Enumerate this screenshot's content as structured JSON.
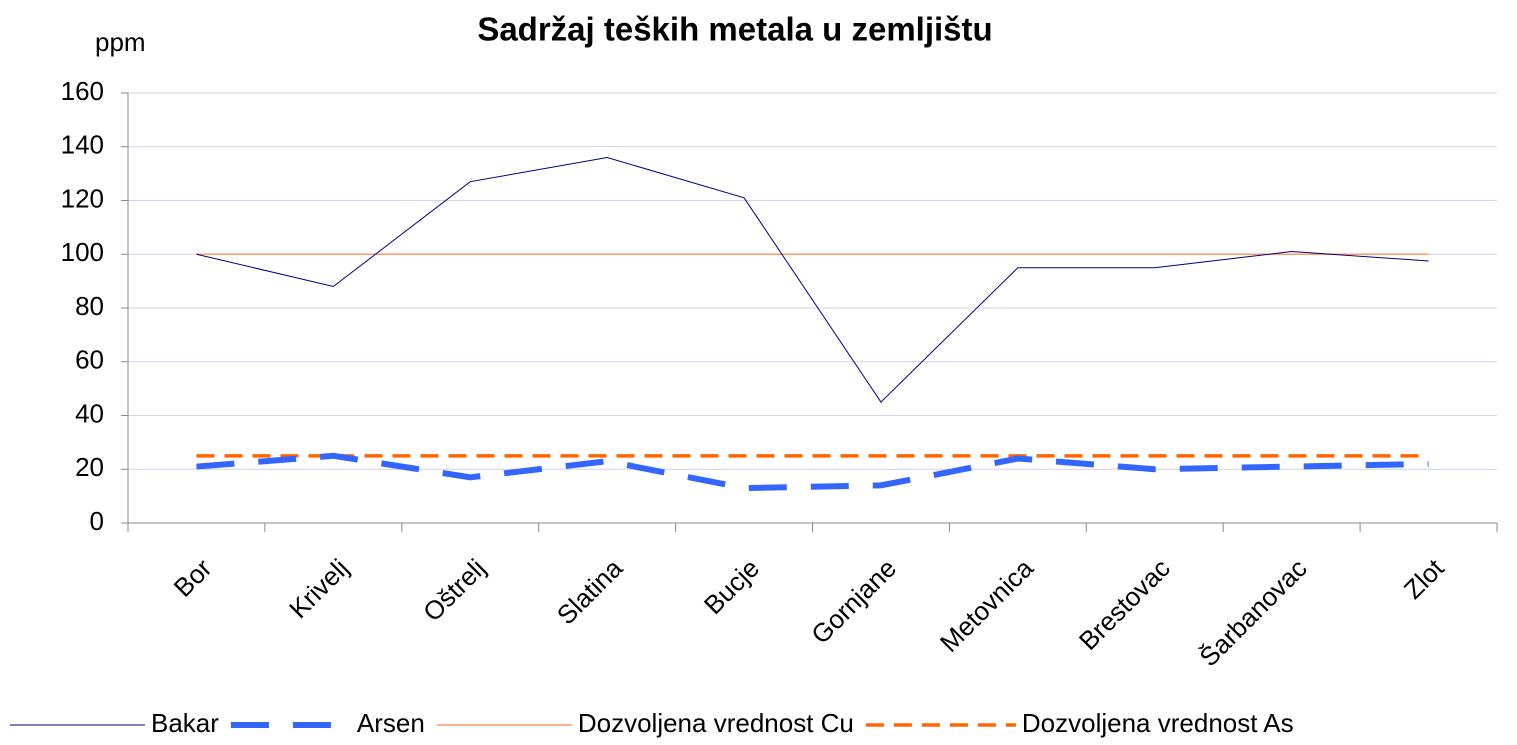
{
  "chart_data": {
    "type": "line",
    "title": "Sadržaj teških metala u zemljištu",
    "y_label": "ppm",
    "categories": [
      "Bor",
      "Krivelj",
      "Oštrelj",
      "Slatina",
      "Bucje",
      "Gornjane",
      "Metovnica",
      "Brestovac",
      "Šarbanovac",
      "Zlot"
    ],
    "series": [
      {
        "name": "Bakar",
        "color": "#000080",
        "style": "solid",
        "width": 1,
        "values": [
          100,
          88,
          127,
          136,
          121,
          45,
          95,
          95,
          101,
          97.5
        ]
      },
      {
        "name": "Arsen",
        "color": "#3366ff",
        "style": "dashed",
        "width": 6,
        "values": [
          21,
          25,
          17,
          23,
          13,
          14,
          24,
          20,
          21,
          22
        ]
      },
      {
        "name": "Dozvoljena vrednost Cu",
        "color": "#ff9966",
        "style": "solid",
        "width": 1.5,
        "values": [
          100,
          100,
          100,
          100,
          100,
          100,
          100,
          100,
          100,
          100
        ]
      },
      {
        "name": "Dozvoljena vrednost As",
        "color": "#ff6600",
        "style": "dashed",
        "width": 3.5,
        "values": [
          25,
          25,
          25,
          25,
          25,
          25,
          25,
          25,
          25,
          25
        ]
      }
    ],
    "ylim": [
      0,
      160
    ],
    "yticks": [
      0,
      20,
      40,
      60,
      80,
      100,
      120,
      140,
      160
    ],
    "grid": true,
    "legend": "bottom"
  }
}
